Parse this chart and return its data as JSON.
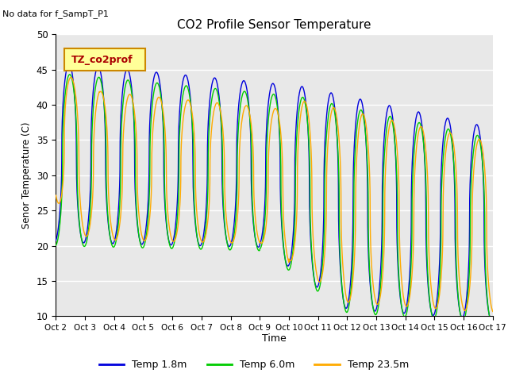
{
  "title": "CO2 Profile Sensor Temperature",
  "no_data_label": "No data for f_SampT_P1",
  "legend_label": "TZ_co2prof",
  "xlabel": "Time",
  "ylabel": "Senor Temperature (C)",
  "ylim": [
    10,
    50
  ],
  "xlim": [
    0,
    15
  ],
  "xtick_labels": [
    "Oct 2",
    "Oct 3",
    "Oct 4",
    "Oct 5",
    "Oct 6",
    "Oct 7",
    "Oct 8",
    "Oct 9",
    "Oct 10",
    "Oct 11",
    "Oct 12",
    "Oct 13",
    "Oct 14",
    "Oct 15",
    "Oct 16",
    "Oct 17"
  ],
  "xtick_positions": [
    0,
    1,
    2,
    3,
    4,
    5,
    6,
    7,
    8,
    9,
    10,
    11,
    12,
    13,
    14,
    15
  ],
  "ytick_positions": [
    10,
    15,
    20,
    25,
    30,
    35,
    40,
    45,
    50
  ],
  "colors": {
    "temp_1_8m": "#0000dd",
    "temp_6_0m": "#00cc00",
    "temp_23_5m": "#ffaa00",
    "legend_box_bg": "#ffff99",
    "legend_box_edge": "#cc8800",
    "legend_label_color": "#aa0000",
    "plot_bg": "#e8e8e8",
    "figure_bg": "#ffffff",
    "grid_color": "#ffffff"
  },
  "legend_entries": [
    {
      "label": "Temp 1.8m",
      "color": "#0000dd"
    },
    {
      "label": "Temp 6.0m",
      "color": "#00cc00"
    },
    {
      "label": "Temp 23.5m",
      "color": "#ffaa00"
    }
  ]
}
